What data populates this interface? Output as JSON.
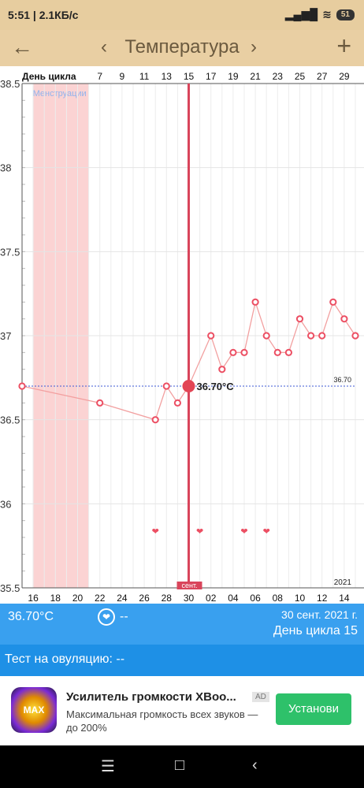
{
  "status": {
    "time": "5:51 | 2.1КБ/с",
    "battery": "51"
  },
  "appbar": {
    "title": "Температура",
    "back_icon": "arrow-back-icon",
    "prev_icon": "chevron-left-icon",
    "next_icon": "chevron-right-icon",
    "add_icon": "plus-icon"
  },
  "chart_data": {
    "type": "line",
    "top_axis_label": "День цикла",
    "top_ticks": [
      "7",
      "9",
      "11",
      "13",
      "15",
      "17",
      "19",
      "21",
      "23",
      "25",
      "27",
      "29"
    ],
    "bottom_ticks": [
      "16",
      "18",
      "20",
      "22",
      "24",
      "26",
      "28",
      "30",
      "02",
      "04",
      "06",
      "08",
      "10",
      "12",
      "14"
    ],
    "y_ticks": [
      "38.5",
      "38",
      "37.5",
      "37",
      "36.5",
      "36",
      "35.5"
    ],
    "ylim": [
      35.5,
      38.5
    ],
    "menstruation_label": "Менструации",
    "menstruation_days": [
      1,
      5
    ],
    "selected_day_label": "сент.",
    "selected_value_label": "36.70°C",
    "baseline_label": "36.70",
    "year_label": "2021",
    "heart_days": [
      12,
      16,
      20,
      22
    ],
    "series": [
      {
        "values": [
          {
            "day": 0,
            "y": 36.7
          },
          {
            "day": 7,
            "y": 36.6
          },
          {
            "day": 12,
            "y": 36.5
          },
          {
            "day": 13,
            "y": 36.7
          },
          {
            "day": 14,
            "y": 36.6
          },
          {
            "day": 15,
            "y": 36.7
          },
          {
            "day": 17,
            "y": 37.0
          },
          {
            "day": 18,
            "y": 36.8
          },
          {
            "day": 19,
            "y": 36.9
          },
          {
            "day": 20,
            "y": 36.9
          },
          {
            "day": 21,
            "y": 37.2
          },
          {
            "day": 22,
            "y": 37.0
          },
          {
            "day": 23,
            "y": 36.9
          },
          {
            "day": 24,
            "y": 36.9
          },
          {
            "day": 25,
            "y": 37.1
          },
          {
            "day": 26,
            "y": 37.0
          },
          {
            "day": 27,
            "y": 37.0
          },
          {
            "day": 28,
            "y": 37.2
          },
          {
            "day": 29,
            "y": 37.1
          },
          {
            "day": 30,
            "y": 37.0
          }
        ]
      }
    ]
  },
  "info": {
    "temperature": "36.70°C",
    "heart_icon": "heart-icon",
    "heart_value": "--",
    "date": "30 сент. 2021 г.",
    "cycle_day": "День цикла 15"
  },
  "ovulation": {
    "text": "Тест на овуляцию: --"
  },
  "ad": {
    "icon_text": "MAX",
    "title": "Усилитель громкости XBoo...",
    "badge": "AD",
    "description": "Максимальная громкость всех звуков — до 200%",
    "button": "Установи"
  },
  "navbar": {
    "menu_icon": "menu-icon",
    "home_icon": "home-icon",
    "back_icon": "back-icon"
  }
}
